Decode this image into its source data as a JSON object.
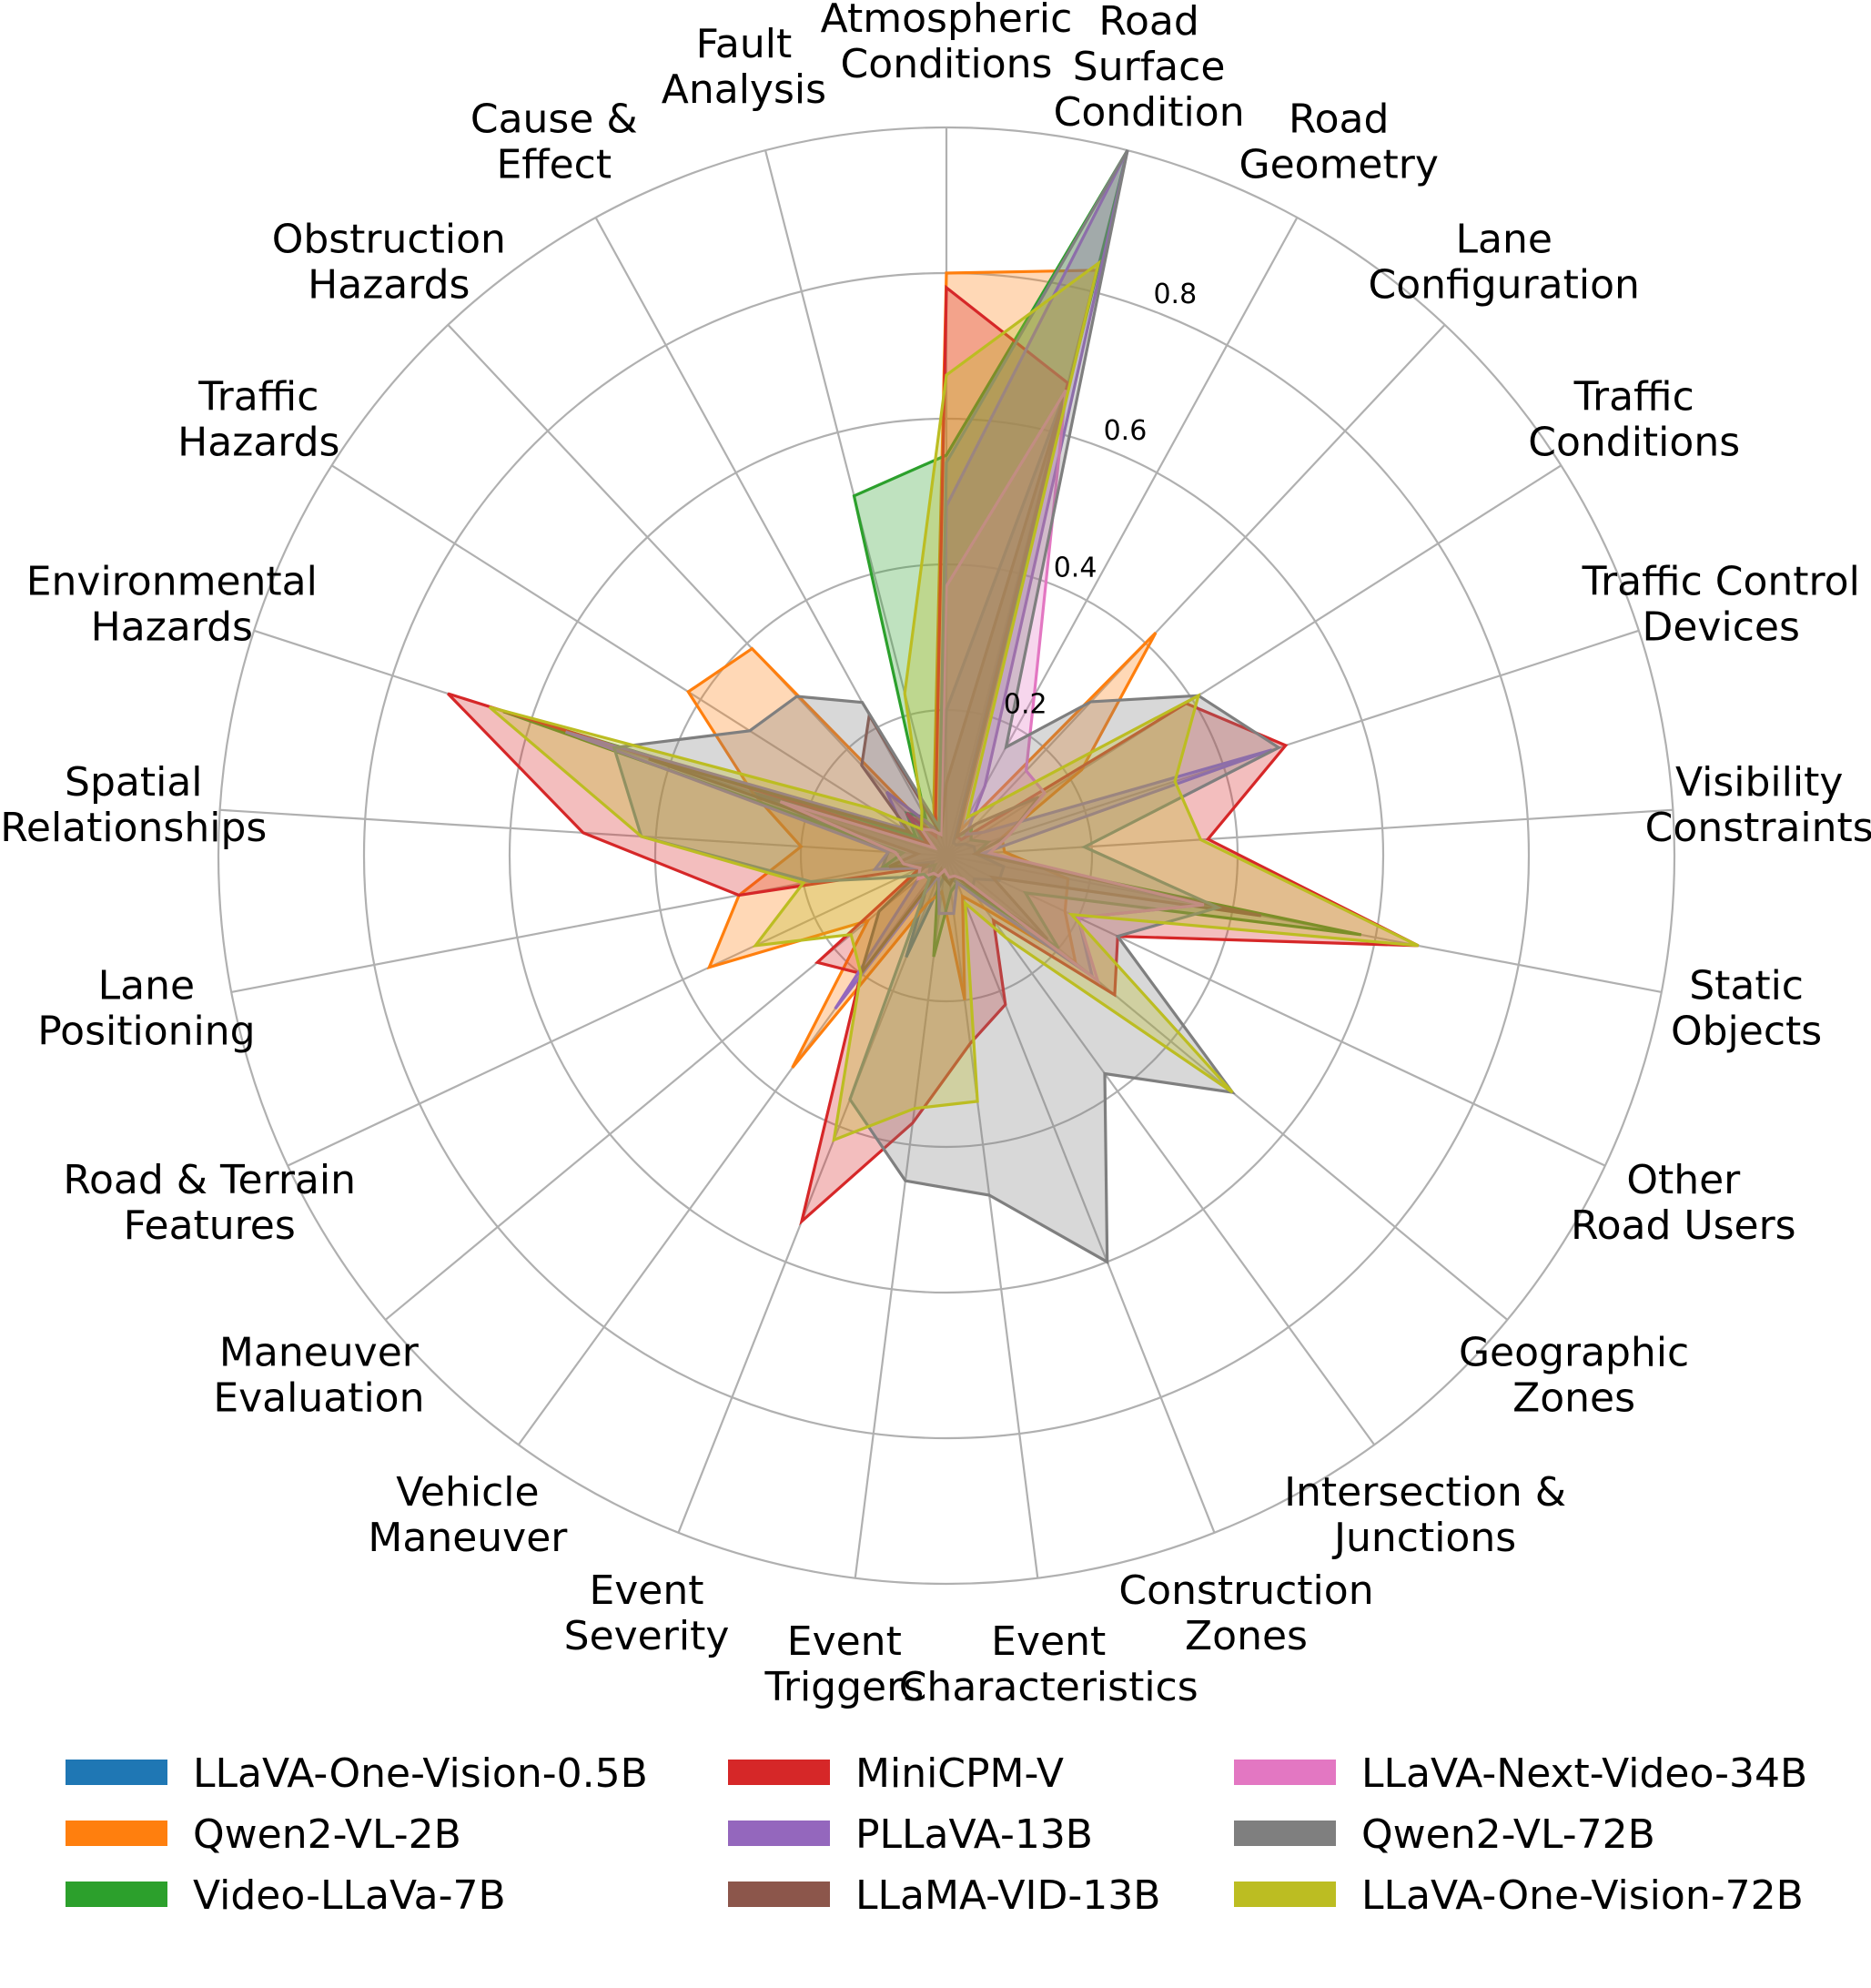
{
  "chart_data": {
    "type": "radar",
    "title": "",
    "rlim": [
      0,
      1.0
    ],
    "rticks": [
      0.2,
      0.4,
      0.6,
      0.8
    ],
    "rtick_labels": [
      "0.2",
      "0.4",
      "0.6",
      "0.8"
    ],
    "grid": true,
    "legend_position": "bottom",
    "categories": [
      "Atmospheric\nConditions",
      "Road\nSurface\nCondition",
      "Road\nGeometry",
      "Lane\nConfiguration",
      "Traffic\nConditions",
      "Traffic Control\nDevices",
      "Visibility\nConstraints",
      "Static\nObjects",
      "Other\nRoad Users",
      "Geographic\nZones",
      "Intersection &\nJunctions",
      "Construction\nZones",
      "Event\nCharacteristics",
      "Event\nTriggers",
      "Event\nSeverity",
      "Vehicle\nManeuver",
      "Maneuver\nEvaluation",
      "Road & Terrain\nFeatures",
      "Lane\nPositioning",
      "Spatial\nRelationships",
      "Environmental\nHazards",
      "Traffic\nHazards",
      "Obstruction\nHazards",
      "Cause &\nEffect",
      "Fault\nAnalysis"
    ],
    "series": [
      {
        "name": "LLaVA-One-Vision-0.5B",
        "color": "#1f77b4",
        "values": [
          0.2,
          0.66,
          0.02,
          0.02,
          0.03,
          0.04,
          0.04,
          0.08,
          0.08,
          0.05,
          0.06,
          0.04,
          0.03,
          0.03,
          0.15,
          0.04,
          0.03,
          0.02,
          0.09,
          0.08,
          0.28,
          0.04,
          0.07,
          0.05,
          0.03
        ]
      },
      {
        "name": "Qwen2-VL-2B",
        "color": "#ff7f0e",
        "values": [
          0.8,
          0.83,
          0.04,
          0.42,
          0.22,
          0.08,
          0.08,
          0.17,
          0.18,
          0.23,
          0.09,
          0.06,
          0.2,
          0.05,
          0.07,
          0.36,
          0.14,
          0.36,
          0.29,
          0.2,
          0.28,
          0.42,
          0.39,
          0.03,
          0.07
        ]
      },
      {
        "name": "Video-LLaVa-7B",
        "color": "#2ca02c",
        "values": [
          0.55,
          1.0,
          0.03,
          0.05,
          0.04,
          0.06,
          0.04,
          0.58,
          0.12,
          0.2,
          0.06,
          0.04,
          0.05,
          0.14,
          0.03,
          0.04,
          0.02,
          0.04,
          0.09,
          0.06,
          0.64,
          0.05,
          0.08,
          0.06,
          0.51
        ]
      },
      {
        "name": "MiniCPM-V",
        "color": "#d62728",
        "values": [
          0.78,
          0.67,
          0.03,
          0.03,
          0.39,
          0.49,
          0.36,
          0.66,
          0.26,
          0.3,
          0.11,
          0.22,
          0.26,
          0.37,
          0.54,
          0.2,
          0.23,
          0.04,
          0.29,
          0.5,
          0.72,
          0.03,
          0.08,
          0.03,
          0.06
        ]
      },
      {
        "name": "PLLaVA-13B",
        "color": "#9467bd",
        "values": [
          0.48,
          1.0,
          0.11,
          0.04,
          0.06,
          0.47,
          0.05,
          0.36,
          0.2,
          0.26,
          0.07,
          0.04,
          0.08,
          0.08,
          0.03,
          0.26,
          0.05,
          0.04,
          0.1,
          0.08,
          0.55,
          0.07,
          0.12,
          0.05,
          0.03
        ]
      },
      {
        "name": "LLaMA-VID-13B",
        "color": "#8c564b",
        "values": [
          0.1,
          0.65,
          0.03,
          0.06,
          0.15,
          0.09,
          0.04,
          0.44,
          0.07,
          0.18,
          0.05,
          0.03,
          0.04,
          0.03,
          0.02,
          0.2,
          0.12,
          0.03,
          0.08,
          0.04,
          0.43,
          0.06,
          0.17,
          0.22,
          0.03
        ]
      },
      {
        "name": "LLaVA-Next-Video-34B",
        "color": "#e377c2",
        "values": [
          0.37,
          0.66,
          0.25,
          0.16,
          0.16,
          0.09,
          0.06,
          0.36,
          0.2,
          0.27,
          0.04,
          0.03,
          0.03,
          0.02,
          0.03,
          0.03,
          0.05,
          0.04,
          0.06,
          0.07,
          0.24,
          0.02,
          0.05,
          0.04,
          0.03
        ]
      },
      {
        "name": "Qwen2-VL-72B",
        "color": "#7f7f7f",
        "values": [
          0.54,
          1.0,
          0.17,
          0.29,
          0.41,
          0.48,
          0.19,
          0.38,
          0.26,
          0.51,
          0.37,
          0.6,
          0.47,
          0.45,
          0.36,
          0.04,
          0.04,
          0.07,
          0.19,
          0.42,
          0.48,
          0.32,
          0.3,
          0.24,
          0.04
        ]
      },
      {
        "name": "LLaVA-One-Vision-72B",
        "color": "#bcbd22",
        "values": [
          0.66,
          0.84,
          0.06,
          0.1,
          0.41,
          0.33,
          0.35,
          0.66,
          0.19,
          0.51,
          0.14,
          0.07,
          0.34,
          0.35,
          0.42,
          0.2,
          0.17,
          0.29,
          0.2,
          0.42,
          0.66,
          0.12,
          0.05,
          0.07,
          0.23
        ]
      }
    ]
  }
}
